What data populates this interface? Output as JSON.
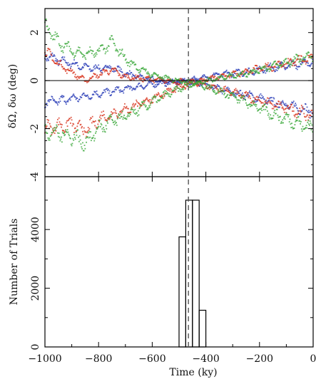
{
  "chart_data": [
    {
      "type": "scatter",
      "panel": "top",
      "ylabel": "δΩ, δω (deg)",
      "xlim": [
        -1000,
        0
      ],
      "ylim": [
        -4,
        3
      ],
      "yticks": [
        -4,
        -2,
        0,
        2
      ],
      "zero_line": 0,
      "marker_line_x": -465,
      "series": [
        {
          "color": "#2c3fb8",
          "points": [
            [
              -1000,
              1.05
            ],
            [
              -950,
              0.85
            ],
            [
              -900,
              0.7
            ],
            [
              -850,
              0.55
            ],
            [
              -800,
              0.5
            ],
            [
              -750,
              0.55
            ],
            [
              -700,
              0.3
            ],
            [
              -650,
              0.15
            ],
            [
              -600,
              0.05
            ],
            [
              -550,
              -0.05
            ],
            [
              -500,
              -0.05
            ],
            [
              -450,
              -0.05
            ],
            [
              -400,
              -0.2
            ],
            [
              -350,
              -0.35
            ],
            [
              -300,
              -0.5
            ],
            [
              -250,
              -0.6
            ],
            [
              -200,
              -0.75
            ],
            [
              -150,
              -0.9
            ],
            [
              -100,
              -1.0
            ],
            [
              -50,
              -1.15
            ],
            [
              0,
              -1.3
            ]
          ]
        },
        {
          "color": "#2c3fb8",
          "points": [
            [
              -1000,
              -0.9
            ],
            [
              -950,
              -0.85
            ],
            [
              -900,
              -0.75
            ],
            [
              -850,
              -0.65
            ],
            [
              -800,
              -0.55
            ],
            [
              -750,
              -0.45
            ],
            [
              -700,
              -0.35
            ],
            [
              -650,
              -0.25
            ],
            [
              -600,
              -0.15
            ],
            [
              -550,
              -0.1
            ],
            [
              -500,
              -0.05
            ],
            [
              -450,
              0.05
            ],
            [
              -400,
              0.15
            ],
            [
              -350,
              0.25
            ],
            [
              -300,
              0.3
            ],
            [
              -250,
              0.35
            ],
            [
              -200,
              0.45
            ],
            [
              -150,
              0.55
            ],
            [
              -100,
              0.6
            ],
            [
              -50,
              0.7
            ],
            [
              0,
              0.8
            ]
          ]
        },
        {
          "color": "#d8321c",
          "points": [
            [
              -1000,
              1.25
            ],
            [
              -950,
              0.7
            ],
            [
              -900,
              0.35
            ],
            [
              -850,
              0.0
            ],
            [
              -800,
              0.25
            ],
            [
              -750,
              0.45
            ],
            [
              -700,
              0.15
            ],
            [
              -650,
              0.1
            ],
            [
              -600,
              0.05
            ],
            [
              -550,
              0.0
            ],
            [
              -500,
              -0.05
            ],
            [
              -450,
              -0.05
            ],
            [
              -400,
              -0.2
            ],
            [
              -350,
              -0.35
            ],
            [
              -300,
              -0.5
            ],
            [
              -250,
              -0.65
            ],
            [
              -200,
              -0.85
            ],
            [
              -150,
              -1.0
            ],
            [
              -100,
              -1.15
            ],
            [
              -50,
              -1.3
            ],
            [
              0,
              -1.5
            ]
          ]
        },
        {
          "color": "#d8321c",
          "points": [
            [
              -1000,
              -2.0
            ],
            [
              -950,
              -1.9
            ],
            [
              -900,
              -1.8
            ],
            [
              -850,
              -2.1
            ],
            [
              -800,
              -1.6
            ],
            [
              -750,
              -1.4
            ],
            [
              -700,
              -1.2
            ],
            [
              -650,
              -1.0
            ],
            [
              -600,
              -0.75
            ],
            [
              -550,
              -0.5
            ],
            [
              -500,
              -0.3
            ],
            [
              -450,
              -0.1
            ],
            [
              -400,
              0.05
            ],
            [
              -350,
              0.15
            ],
            [
              -300,
              0.25
            ],
            [
              -250,
              0.35
            ],
            [
              -200,
              0.5
            ],
            [
              -150,
              0.6
            ],
            [
              -100,
              0.7
            ],
            [
              -50,
              0.85
            ],
            [
              0,
              0.95
            ]
          ]
        },
        {
          "color": "#3aa83a",
          "points": [
            [
              -1000,
              2.3
            ],
            [
              -950,
              1.6
            ],
            [
              -900,
              1.25
            ],
            [
              -850,
              1.1
            ],
            [
              -800,
              1.2
            ],
            [
              -750,
              1.6
            ],
            [
              -700,
              0.9
            ],
            [
              -650,
              0.5
            ],
            [
              -600,
              0.25
            ],
            [
              -550,
              0.1
            ],
            [
              -500,
              0.0
            ],
            [
              -450,
              -0.05
            ],
            [
              -400,
              -0.25
            ],
            [
              -350,
              -0.45
            ],
            [
              -300,
              -0.65
            ],
            [
              -250,
              -0.9
            ],
            [
              -200,
              -1.15
            ],
            [
              -150,
              -1.4
            ],
            [
              -100,
              -1.6
            ],
            [
              -50,
              -1.8
            ],
            [
              0,
              -2.0
            ]
          ]
        },
        {
          "color": "#3aa83a",
          "points": [
            [
              -1000,
              -2.1
            ],
            [
              -950,
              -2.2
            ],
            [
              -900,
              -2.3
            ],
            [
              -850,
              -2.6
            ],
            [
              -800,
              -2.0
            ],
            [
              -750,
              -1.7
            ],
            [
              -700,
              -1.5
            ],
            [
              -650,
              -1.2
            ],
            [
              -600,
              -0.9
            ],
            [
              -550,
              -0.6
            ],
            [
              -500,
              -0.35
            ],
            [
              -450,
              -0.15
            ],
            [
              -400,
              0.0
            ],
            [
              -350,
              0.1
            ],
            [
              -300,
              0.2
            ],
            [
              -250,
              0.3
            ],
            [
              -200,
              0.45
            ],
            [
              -150,
              0.6
            ],
            [
              -100,
              0.75
            ],
            [
              -50,
              0.9
            ],
            [
              0,
              1.05
            ]
          ]
        }
      ]
    },
    {
      "type": "histogram",
      "panel": "bottom",
      "xlabel": "Time (ky)",
      "ylabel": "Number of Trials",
      "xlim": [
        -1000,
        0
      ],
      "ylim": [
        0,
        5800
      ],
      "xticks": [
        -1000,
        -800,
        -600,
        -400,
        -200,
        0
      ],
      "yticks": [
        0,
        2000,
        4000
      ],
      "marker_line_x": -465,
      "bins": [
        {
          "x0": -500,
          "x1": -475,
          "count": 3750
        },
        {
          "x0": -475,
          "x1": -450,
          "count": 5000
        },
        {
          "x0": -450,
          "x1": -425,
          "count": 5000
        },
        {
          "x0": -425,
          "x1": -400,
          "count": 1250
        }
      ]
    }
  ]
}
